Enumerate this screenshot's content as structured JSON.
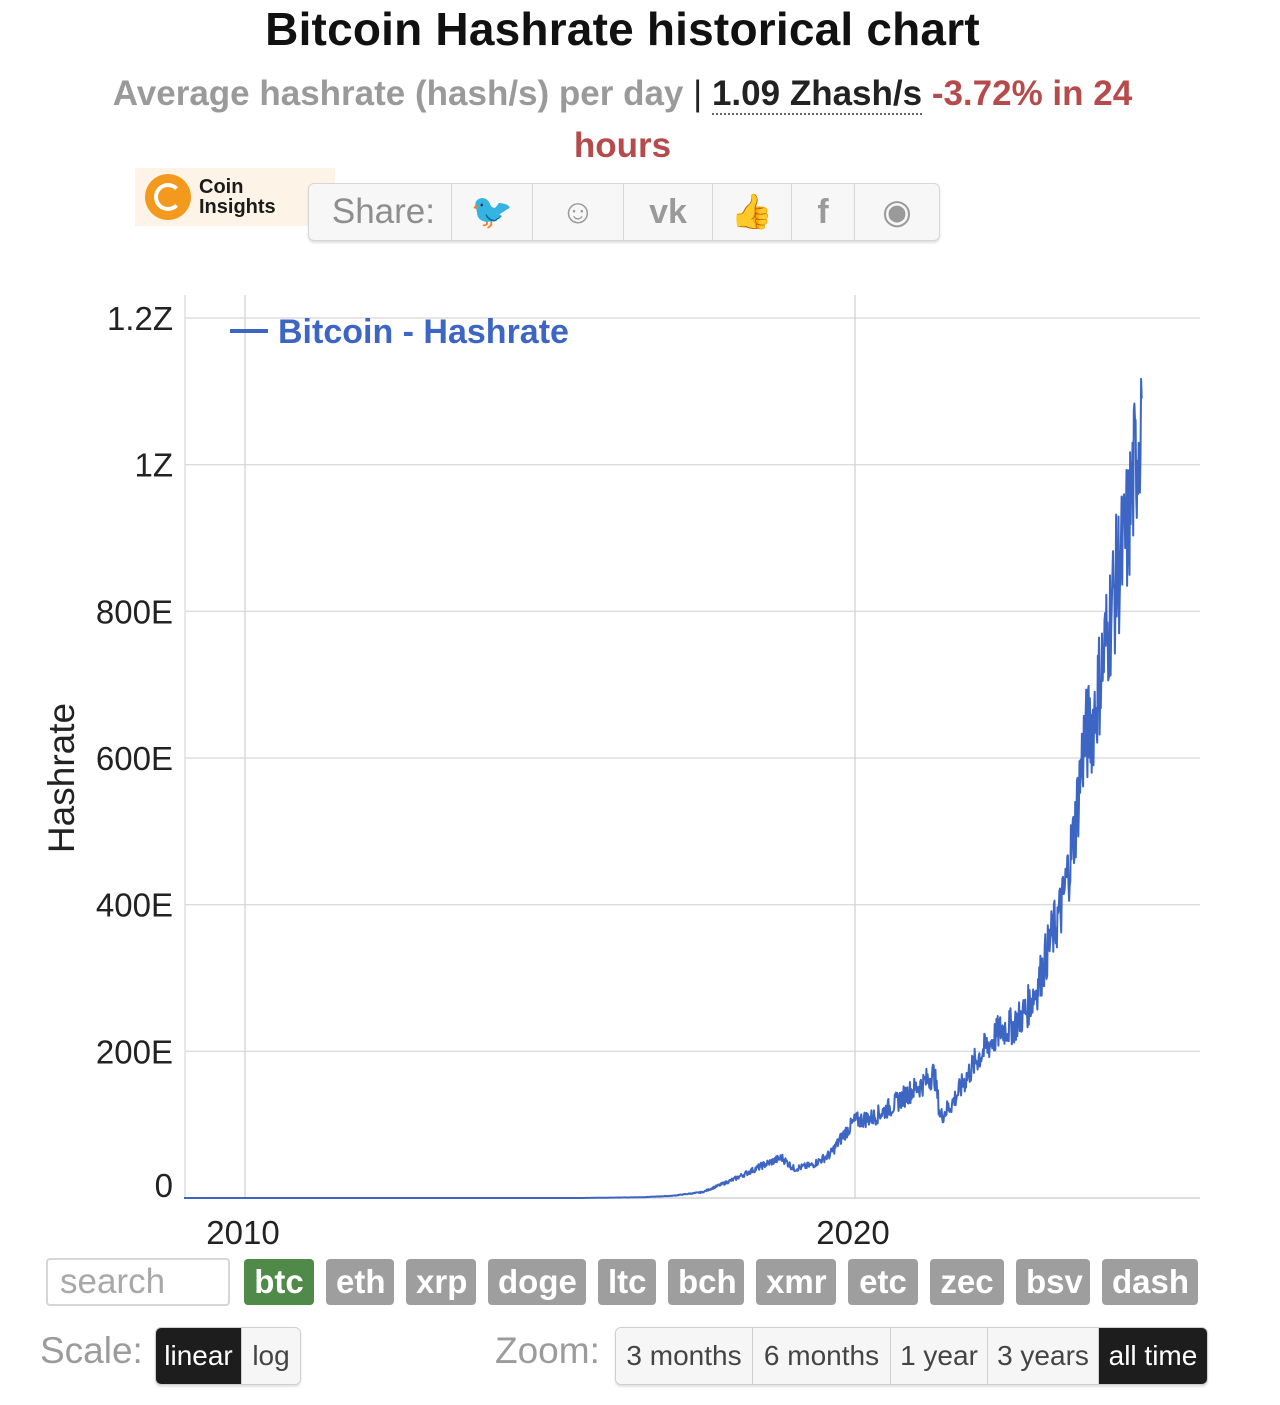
{
  "header": {
    "title": "Bitcoin Hashrate historical chart",
    "subtitle_text": "Average hashrate (hash/s) per day",
    "separator": "|",
    "current_value": "1.09 Zhash/s",
    "change_text": "-3.72% in 24 hours"
  },
  "logo": {
    "line1": "Coin",
    "line2": "Insights"
  },
  "share": {
    "label": "Share:",
    "buttons": [
      {
        "name": "twitter",
        "glyph": "🐦",
        "color": "#4fa8e0"
      },
      {
        "name": "reddit",
        "glyph": "☺",
        "color": "#9a9a9a"
      },
      {
        "name": "vk",
        "glyph": "vk",
        "color": "#9a9a9a"
      },
      {
        "name": "like",
        "glyph": "👍",
        "color": "#9a9a9a"
      },
      {
        "name": "facebook",
        "glyph": "f",
        "color": "#9a9a9a"
      },
      {
        "name": "weibo",
        "glyph": "◉",
        "color": "#9a9a9a"
      }
    ]
  },
  "chart_data": {
    "type": "line",
    "title": "",
    "xlabel": "",
    "ylabel": "Hashrate",
    "x_range": [
      2009.0,
      2024.0
    ],
    "ylim": [
      0,
      1.2e+21
    ],
    "x_ticks": [
      {
        "value": 2010,
        "label": "2010"
      },
      {
        "value": 2020,
        "label": "2020"
      }
    ],
    "y_ticks": [
      {
        "value": 0,
        "label": "0"
      },
      {
        "value": 2e+20,
        "label": "200E"
      },
      {
        "value": 4e+20,
        "label": "400E"
      },
      {
        "value": 6e+20,
        "label": "600E"
      },
      {
        "value": 8e+20,
        "label": "800E"
      },
      {
        "value": 1e+21,
        "label": "1Z"
      },
      {
        "value": 1.2e+21,
        "label": "1.2Z"
      }
    ],
    "grid": true,
    "legend_position": "top-left",
    "series": [
      {
        "name": "Bitcoin - Hashrate",
        "color": "#3d66c4",
        "points": [
          [
            2009.0,
            0
          ],
          [
            2012.0,
            0
          ],
          [
            2014.0,
            0
          ],
          [
            2015.5,
            0
          ],
          [
            2016.5,
            1e+18
          ],
          [
            2017.0,
            3e+18
          ],
          [
            2017.5,
            8e+18
          ],
          [
            2018.0,
            2.5e+19
          ],
          [
            2018.5,
            4.5e+19
          ],
          [
            2018.8,
            5.5e+19
          ],
          [
            2019.0,
            4e+19
          ],
          [
            2019.3,
            4.5e+19
          ],
          [
            2019.6,
            6e+19
          ],
          [
            2019.8,
            8.5e+19
          ],
          [
            2020.0,
            1.05e+20
          ],
          [
            2020.3,
            1.1e+20
          ],
          [
            2020.6,
            1.25e+20
          ],
          [
            2020.9,
            1.45e+20
          ],
          [
            2021.1,
            1.55e+20
          ],
          [
            2021.3,
            1.7e+20
          ],
          [
            2021.4,
            1.1e+20
          ],
          [
            2021.6,
            1.3e+20
          ],
          [
            2021.8,
            1.6e+20
          ],
          [
            2022.0,
            1.9e+20
          ],
          [
            2022.2,
            2.1e+20
          ],
          [
            2022.4,
            2.3e+20
          ],
          [
            2022.6,
            2.35e+20
          ],
          [
            2022.8,
            2.55e+20
          ],
          [
            2023.0,
            2.9e+20
          ],
          [
            2023.2,
            3.5e+20
          ],
          [
            2023.4,
            4e+20
          ],
          [
            2023.6,
            5e+20
          ],
          [
            2023.75,
            6.2e+20
          ],
          [
            2023.9,
            6.5e+20
          ],
          [
            2024.0,
            7e+20
          ],
          [
            2024.1,
            7.5e+20
          ],
          [
            2024.2,
            8e+20
          ],
          [
            2024.3,
            8.5e+20
          ],
          [
            2024.4,
            8.8e+20
          ],
          [
            2024.5,
            9.3e+20
          ],
          [
            2024.55,
            9.7e+20
          ],
          [
            2024.6,
            1e+21
          ],
          [
            2024.7,
            1.09e+21
          ]
        ]
      }
    ]
  },
  "search": {
    "placeholder": "search"
  },
  "coins": [
    "btc",
    "eth",
    "xrp",
    "doge",
    "ltc",
    "bch",
    "xmr",
    "etc",
    "zec",
    "bsv",
    "dash"
  ],
  "active_coin": "btc",
  "scale": {
    "label": "Scale:",
    "options": [
      "linear",
      "log"
    ],
    "active": "linear"
  },
  "zoom": {
    "label": "Zoom:",
    "options": [
      "3 months",
      "6 months",
      "1 year",
      "3 years",
      "all time"
    ],
    "active": "all time"
  }
}
